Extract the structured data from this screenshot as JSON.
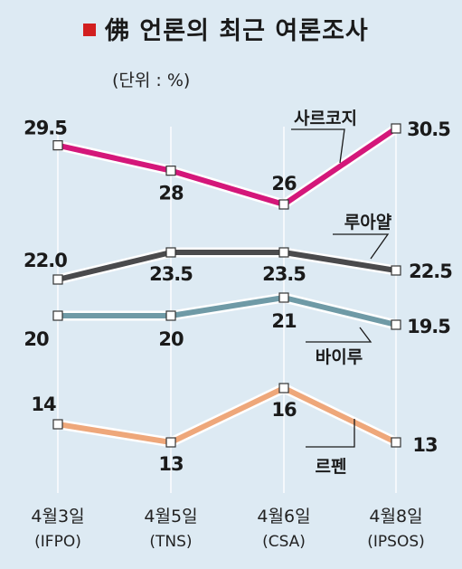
{
  "title": "佛 언론의 최근 여론조사",
  "unit": "(단위 : %)",
  "colors": {
    "sarkozy": "#d4177a",
    "royal": "#4a4a4c",
    "bayrou": "#6f9aa6",
    "lepen": "#eea77a",
    "background": "#ddeaf3",
    "title_marker": "#d21f1f"
  },
  "chart_data": {
    "type": "line",
    "title": "佛 언론의 최근 여론조사",
    "unit": "(단위 : %)",
    "categories": [
      {
        "date": "4월3일",
        "source": "(IFPO)"
      },
      {
        "date": "4월5일",
        "source": "(TNS)"
      },
      {
        "date": "4월6일",
        "source": "(CSA)"
      },
      {
        "date": "4월8일",
        "source": "(IPSOS)"
      }
    ],
    "series": [
      {
        "name": "사르코지",
        "color": "#d4177a",
        "values": [
          29.5,
          28,
          26,
          30.5
        ],
        "labels": [
          "29.5",
          "28",
          "26",
          "30.5"
        ]
      },
      {
        "name": "루아얄",
        "color": "#4a4a4c",
        "values": [
          22.0,
          23.5,
          23.5,
          22.5
        ],
        "labels": [
          "22.0",
          "23.5",
          "23.5",
          "22.5"
        ]
      },
      {
        "name": "바이루",
        "color": "#6f9aa6",
        "values": [
          20,
          20,
          21,
          19.5
        ],
        "labels": [
          "20",
          "20",
          "21",
          "19.5"
        ]
      },
      {
        "name": "르펜",
        "color": "#eea77a",
        "values": [
          14,
          13,
          16,
          13
        ],
        "labels": [
          "14",
          "13",
          "16",
          "13"
        ]
      }
    ],
    "grid": false,
    "legend": "inline labels"
  }
}
